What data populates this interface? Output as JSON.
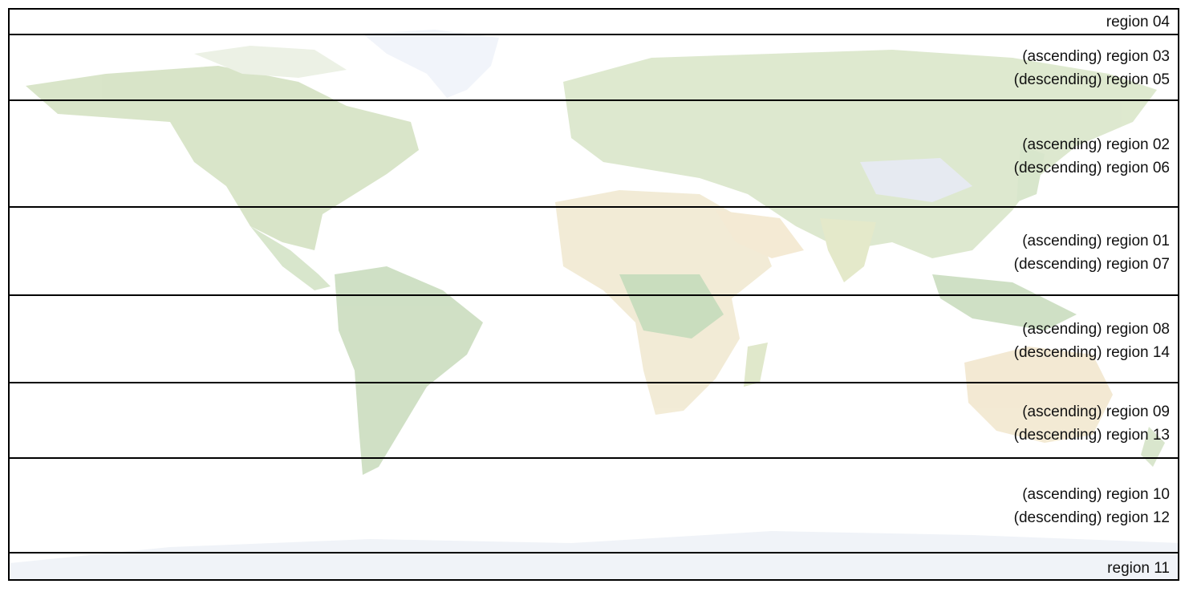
{
  "map": {
    "land_color": "#dfe8c9",
    "forest_color": "#b9d2a4",
    "desert_color": "#f1e2c2",
    "ice_color": "#e8eef8"
  },
  "bands": [
    {
      "id": "band-04",
      "lines": [
        "region 04"
      ]
    },
    {
      "id": "band-03-05",
      "lines": [
        "(ascending) region 03",
        "(descending) region 05"
      ]
    },
    {
      "id": "band-02-06",
      "lines": [
        "(ascending) region 02",
        "(descending) region 06"
      ]
    },
    {
      "id": "band-01-07",
      "lines": [
        "(ascending) region 01",
        "(descending) region 07"
      ]
    },
    {
      "id": "band-08-14",
      "lines": [
        "(ascending) region 08",
        "(descending) region 14"
      ]
    },
    {
      "id": "band-09-13",
      "lines": [
        "(ascending) region 09",
        "(descending) region 13"
      ]
    },
    {
      "id": "band-10-12",
      "lines": [
        "(ascending) region 10",
        "(descending) region 12"
      ]
    },
    {
      "id": "band-11",
      "lines": [
        "region 11"
      ]
    }
  ]
}
